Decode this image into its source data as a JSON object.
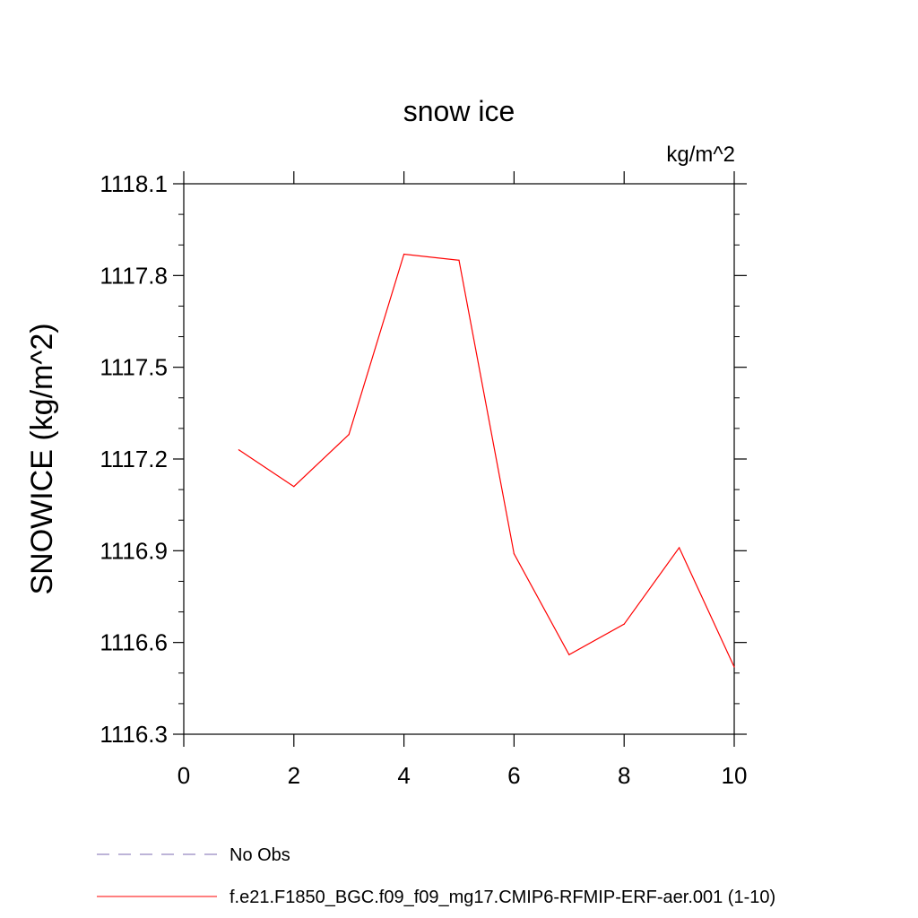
{
  "chart_data": {
    "type": "line",
    "title": "snow ice",
    "units": "kg/m^2",
    "ylabel": "SNOWICE  (kg/m^2)",
    "xlabel": "",
    "xlim": [
      0,
      10
    ],
    "ylim": [
      1116.3,
      1118.1
    ],
    "x_ticks": [
      0,
      2,
      4,
      6,
      8,
      10
    ],
    "y_ticks": [
      1116.3,
      1116.6,
      1116.9,
      1117.2,
      1117.5,
      1117.8,
      1118.1
    ],
    "y_tick_labels": [
      "1116.3",
      "1116.6",
      "1116.9",
      "1117.2",
      "1117.5",
      "1117.8",
      "1118.1"
    ],
    "grid": false,
    "legend_position": "bottom-left",
    "series": [
      {
        "name": "f.e21.F1850_BGC.f09_f09_mg17.CMIP6-RFMIP-ERF-aer.001 (1-10)",
        "color": "#ff0000",
        "dash": "solid",
        "x": [
          1,
          2,
          3,
          4,
          5,
          6,
          7,
          8,
          9,
          10
        ],
        "values": [
          1117.23,
          1117.11,
          1117.28,
          1117.87,
          1117.85,
          1116.89,
          1116.56,
          1116.66,
          1116.91,
          1116.52
        ]
      }
    ],
    "legend": [
      {
        "label": "No Obs",
        "color": "#7b68b0",
        "dash": "dashed"
      },
      {
        "label": "f.e21.F1850_BGC.f09_f09_mg17.CMIP6-RFMIP-ERF-aer.001 (1-10)",
        "color": "#ff0000",
        "dash": "solid"
      }
    ]
  }
}
